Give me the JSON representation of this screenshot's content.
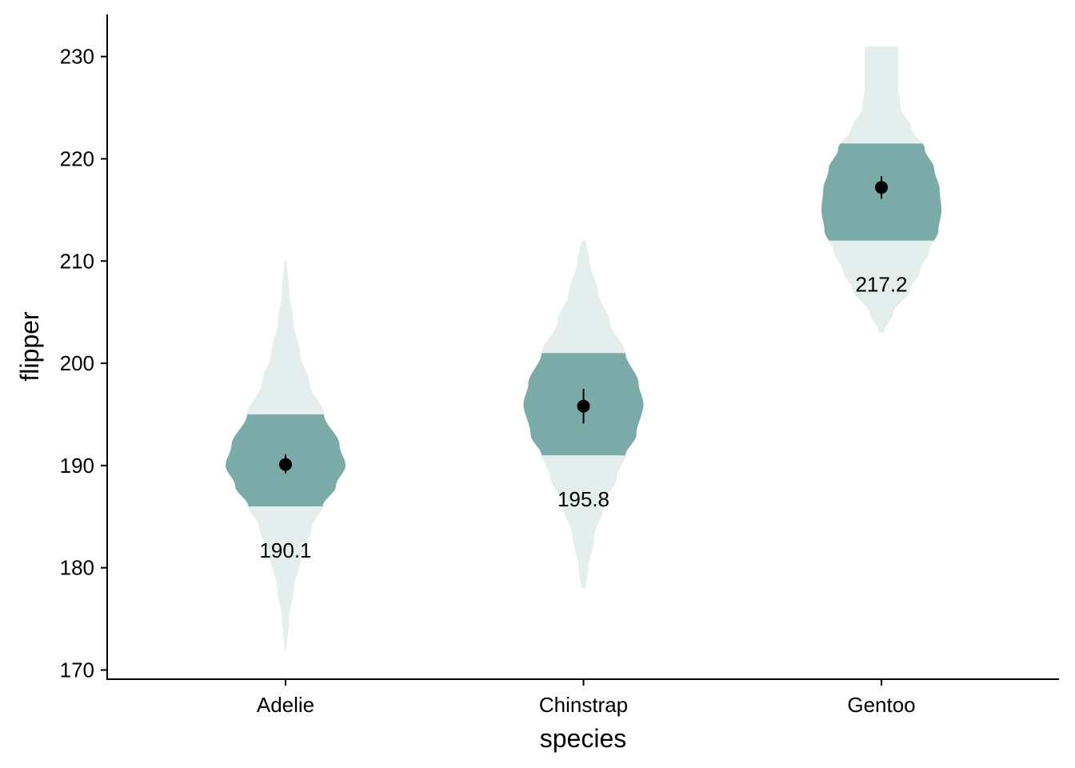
{
  "chart_data": {
    "type": "violin",
    "xlabel": "species",
    "ylabel": "flipper",
    "ylim": [
      169,
      233
    ],
    "y_ticks": [
      "170",
      "180",
      "190",
      "200",
      "210",
      "220",
      "230"
    ],
    "categories": [
      "Adelie",
      "Chinstrap",
      "Gentoo"
    ],
    "violins": [
      {
        "category": "Adelie",
        "range": [
          172,
          210
        ],
        "iqr": [
          186,
          195
        ],
        "mean": 190.1,
        "error": [
          189.2,
          191.1
        ],
        "label": "190.1",
        "density": [
          [
            172,
            0.02
          ],
          [
            175,
            0.06
          ],
          [
            178,
            0.14
          ],
          [
            181,
            0.26
          ],
          [
            184,
            0.44
          ],
          [
            186,
            0.62
          ],
          [
            188,
            0.84
          ],
          [
            190,
            1.0
          ],
          [
            192,
            0.9
          ],
          [
            195,
            0.64
          ],
          [
            198,
            0.4
          ],
          [
            201,
            0.24
          ],
          [
            204,
            0.13
          ],
          [
            207,
            0.06
          ],
          [
            210,
            0.02
          ]
        ]
      },
      {
        "category": "Chinstrap",
        "range": [
          178,
          212
        ],
        "iqr": [
          191,
          201
        ],
        "mean": 195.8,
        "error": [
          194.1,
          197.5
        ],
        "label": "195.8",
        "density": [
          [
            178,
            0.04
          ],
          [
            180,
            0.08
          ],
          [
            183,
            0.18
          ],
          [
            186,
            0.34
          ],
          [
            189,
            0.56
          ],
          [
            191,
            0.7
          ],
          [
            193,
            0.88
          ],
          [
            196,
            1.0
          ],
          [
            198,
            0.92
          ],
          [
            201,
            0.7
          ],
          [
            204,
            0.44
          ],
          [
            207,
            0.24
          ],
          [
            210,
            0.1
          ],
          [
            212,
            0.04
          ]
        ]
      },
      {
        "category": "Gentoo",
        "range": [
          203,
          231
        ],
        "iqr": [
          212,
          221.5
        ],
        "mean": 217.2,
        "error": [
          216.1,
          218.3
        ],
        "label": "217.2",
        "density": [
          [
            203,
            0.04
          ],
          [
            205,
            0.2
          ],
          [
            207,
            0.46
          ],
          [
            209,
            0.64
          ],
          [
            211,
            0.8
          ],
          [
            213,
            0.95
          ],
          [
            215,
            1.0
          ],
          [
            217,
            0.97
          ],
          [
            219,
            0.88
          ],
          [
            221,
            0.72
          ],
          [
            223,
            0.5
          ],
          [
            225,
            0.32
          ],
          [
            227,
            0.28
          ],
          [
            229,
            0.28
          ],
          [
            231,
            0.28
          ]
        ]
      }
    ],
    "colors": {
      "violin_outer": "#e4eeed",
      "violin_inner": "#7aaba9",
      "point": "#000000",
      "axis": "#000000"
    }
  }
}
